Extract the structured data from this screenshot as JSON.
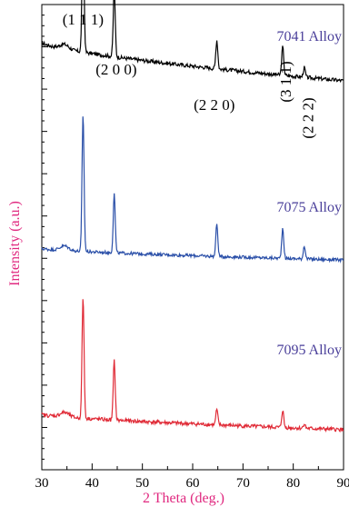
{
  "chart_data": {
    "type": "line",
    "xlabel": "2 Theta (deg.)",
    "ylabel": "Intensity (a.u.)",
    "xlim": [
      30,
      90
    ],
    "x_ticks": [
      30,
      40,
      50,
      60,
      70,
      80,
      90
    ],
    "y_tick_labels": "none",
    "grid": false,
    "legend": "none",
    "peak_positions": [
      38.2,
      44.4,
      64.8,
      77.9,
      82.2
    ],
    "peak_labels": [
      "(1 1 1)",
      "(2 0 0)",
      "(2 2 0)",
      "(3 1 1)",
      "(2 2 2)"
    ],
    "series": [
      {
        "name": "7041 Alloy",
        "color": "#000000",
        "label_color": "#4a3f9a",
        "baseline_start": 3.0,
        "baseline_end": 2.0,
        "peak_heights": [
          3.45,
          1.75,
          0.75,
          0.75,
          0.25
        ],
        "noise": 0.05
      },
      {
        "name": "7075 Alloy",
        "color": "#2a4fa8",
        "label_color": "#4a3f9a",
        "baseline_start": 1.75,
        "baseline_end": 1.45,
        "peak_heights": [
          3.6,
          1.55,
          0.85,
          0.8,
          0.35
        ],
        "noise": 0.04
      },
      {
        "name": "7095 Alloy",
        "color": "#e02a36",
        "label_color": "#4a3f9a",
        "baseline_start": 0.95,
        "baseline_end": 0.55,
        "peak_heights": [
          3.2,
          1.55,
          0.4,
          0.45,
          0.12
        ],
        "noise": 0.05
      }
    ]
  }
}
